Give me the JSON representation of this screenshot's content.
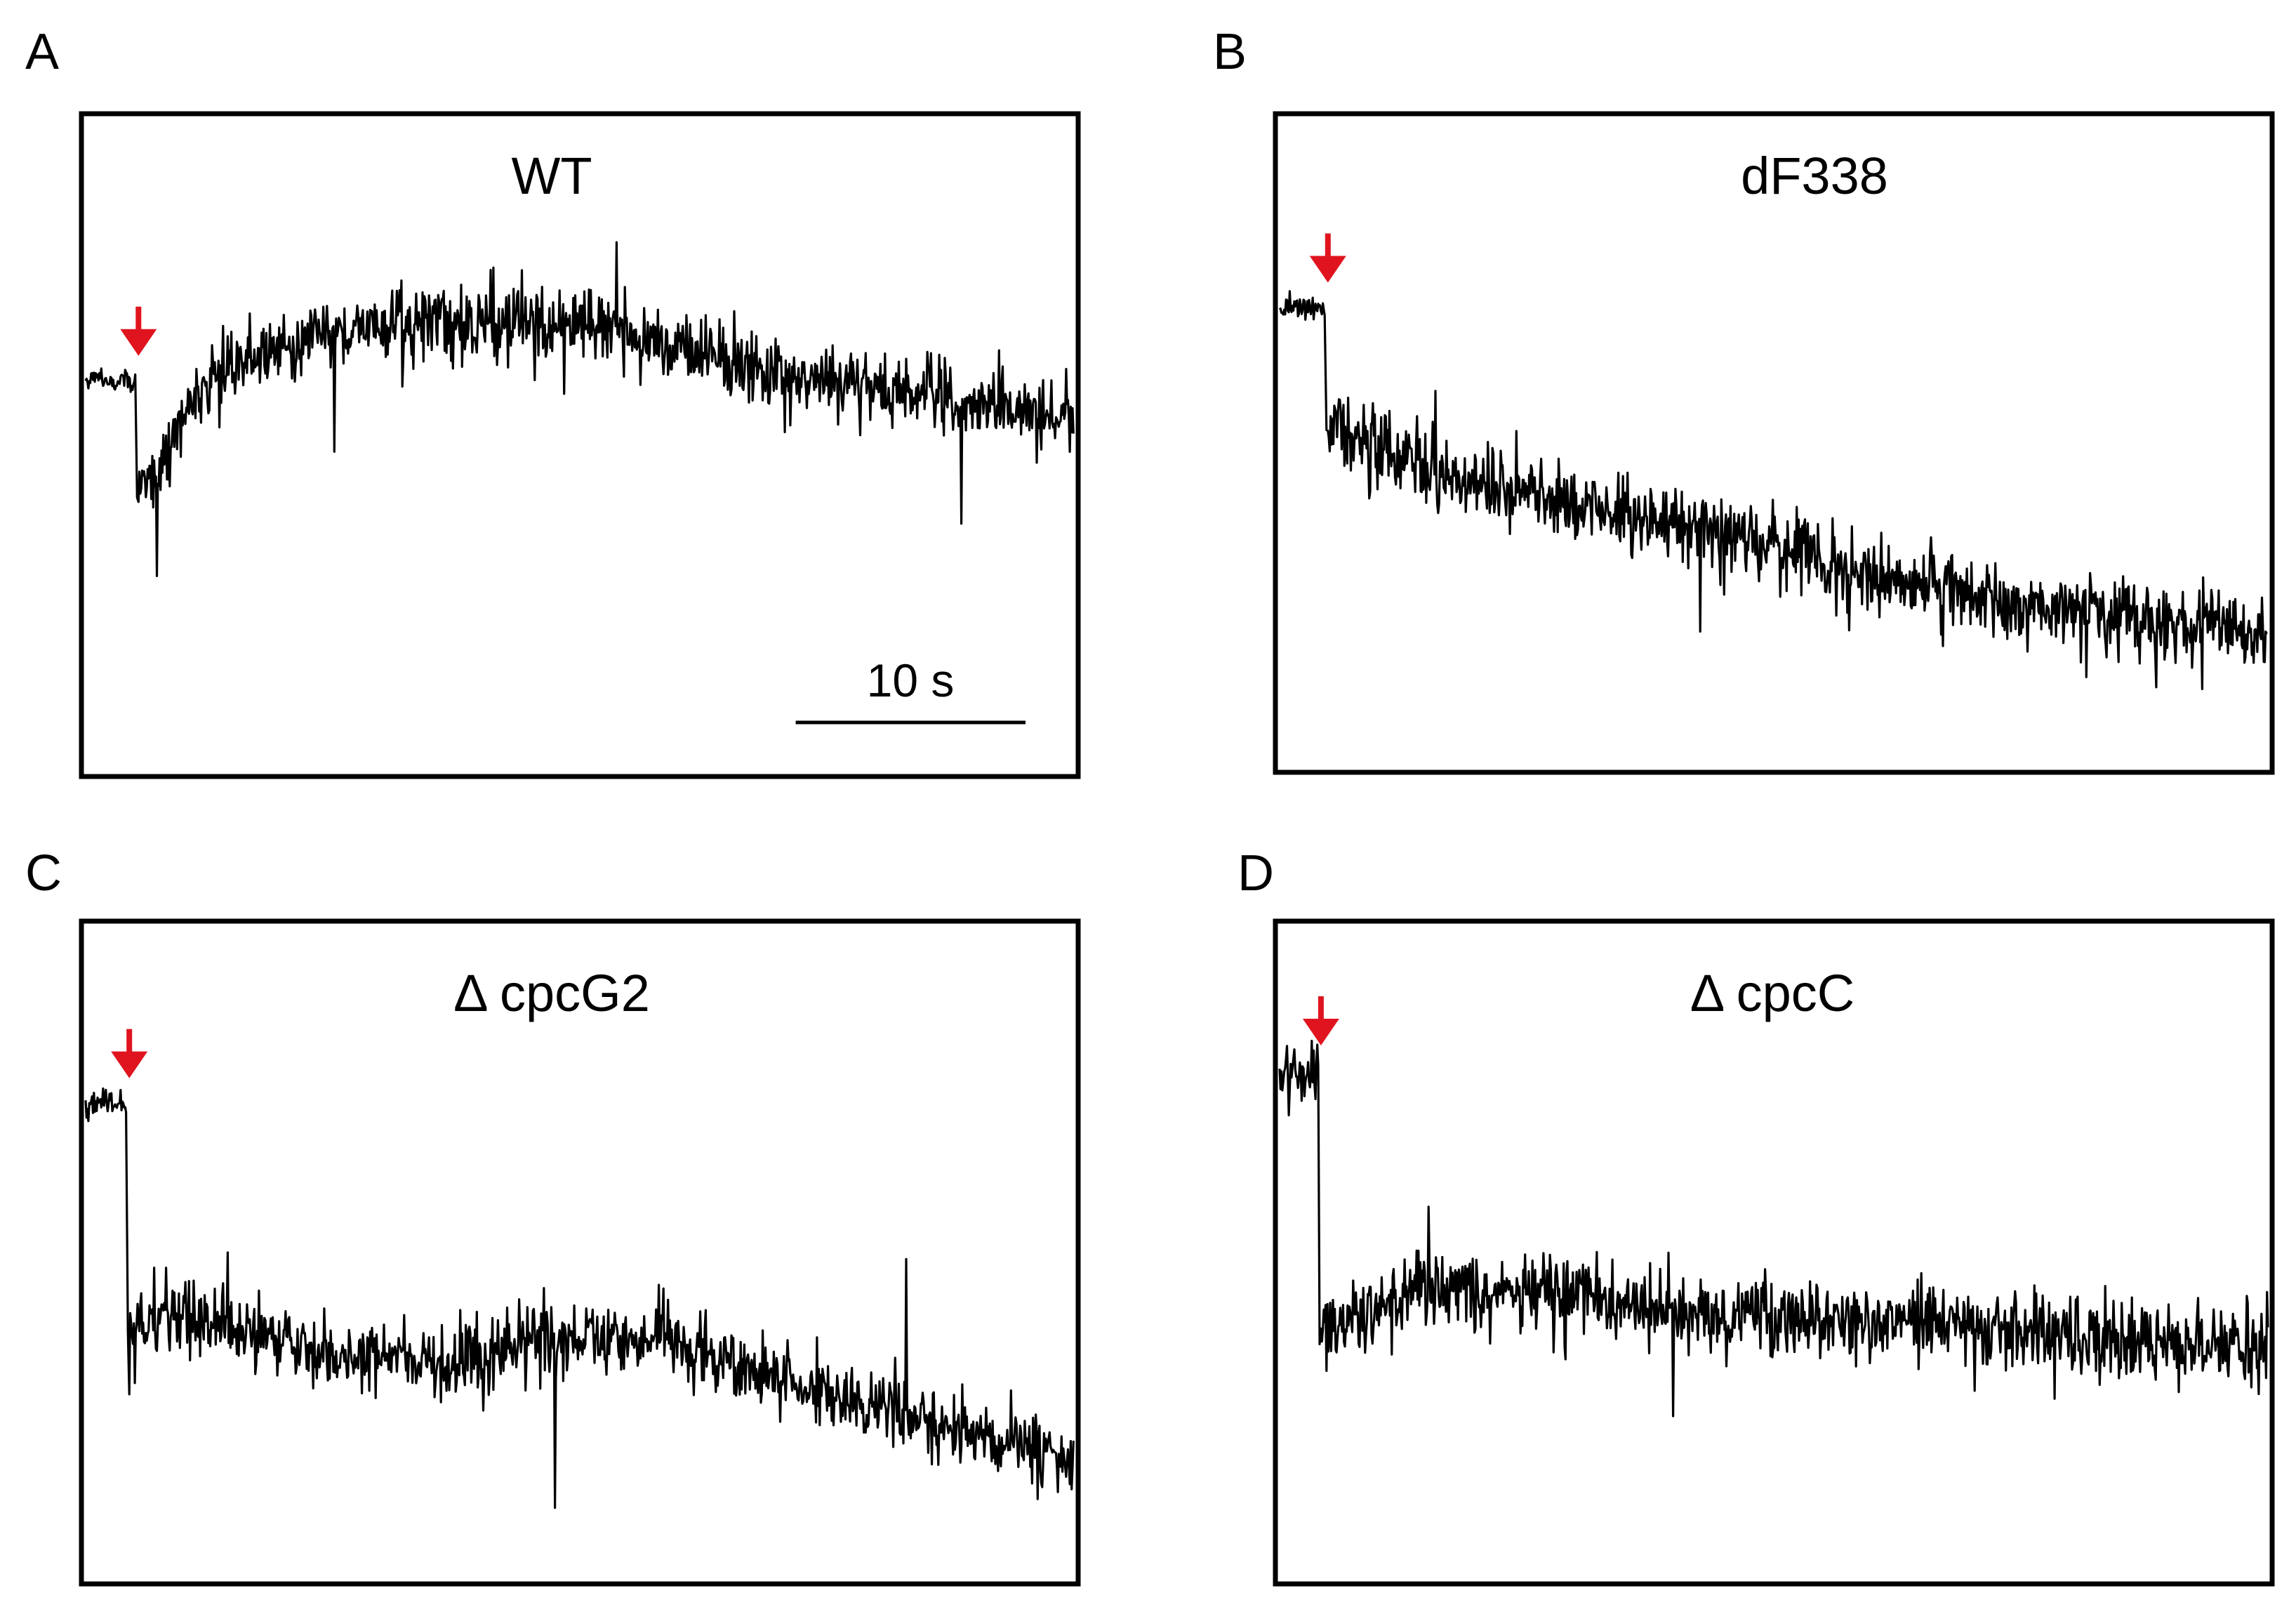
{
  "chart_data": [
    {
      "panel": "A",
      "title": "WT",
      "type": "line",
      "x_units": "s",
      "y_units": "",
      "x_range": [
        0,
        43
      ],
      "y_range": [
        0,
        1
      ],
      "arrow_x": 2.3,
      "arrow_color": "#e0141e",
      "trace_color": "#000000",
      "scale_bar": {
        "length": 10,
        "label": "10 s"
      },
      "trace": {
        "pre": {
          "x": [
            0,
            2.2
          ],
          "level": 0.6,
          "noise": 0.008
        },
        "drop_to": 0.42,
        "anchors": [
          [
            2.3,
            0.43
          ],
          [
            3,
            0.44
          ],
          [
            4,
            0.53
          ],
          [
            5.5,
            0.6
          ],
          [
            8,
            0.65
          ],
          [
            12,
            0.68
          ],
          [
            17,
            0.69
          ],
          [
            22,
            0.68
          ],
          [
            27,
            0.64
          ],
          [
            32,
            0.6
          ],
          [
            37,
            0.57
          ],
          [
            43,
            0.54
          ]
        ],
        "noise": 0.028,
        "spikes": [
          [
            3.1,
            0.3
          ],
          [
            10.8,
            0.49
          ],
          [
            23.1,
            0.81
          ],
          [
            38.1,
            0.38
          ]
        ]
      }
    },
    {
      "panel": "B",
      "title": "dF338",
      "type": "line",
      "x_units": "s",
      "y_units": "",
      "x_range": [
        0,
        43
      ],
      "y_range": [
        0,
        1
      ],
      "arrow_x": 2.1,
      "arrow_color": "#e0141e",
      "trace_color": "#000000",
      "trace": {
        "pre": {
          "x": [
            0,
            2.0
          ],
          "level": 0.71,
          "noise": 0.01
        },
        "drop_to": 0.52,
        "anchors": [
          [
            2.1,
            0.54
          ],
          [
            4,
            0.49
          ],
          [
            7,
            0.45
          ],
          [
            11,
            0.42
          ],
          [
            15,
            0.39
          ],
          [
            20,
            0.36
          ],
          [
            24,
            0.31
          ],
          [
            28,
            0.28
          ],
          [
            32,
            0.25
          ],
          [
            36,
            0.24
          ],
          [
            40,
            0.22
          ],
          [
            43,
            0.2
          ]
        ],
        "noise": 0.03,
        "spikes": [
          [
            35.1,
            0.14
          ],
          [
            18.3,
            0.21
          ],
          [
            6.8,
            0.58
          ]
        ]
      }
    },
    {
      "panel": "C",
      "title": "Δ cpcG2",
      "type": "line",
      "x_units": "s",
      "y_units": "",
      "x_range": [
        0,
        43
      ],
      "y_range": [
        0,
        1
      ],
      "arrow_x": 1.9,
      "arrow_color": "#e0141e",
      "trace_color": "#000000",
      "trace": {
        "pre": {
          "x": [
            0,
            1.8
          ],
          "level": 0.73,
          "noise": 0.01
        },
        "drop_to": 0.38,
        "anchors": [
          [
            1.9,
            0.38
          ],
          [
            4,
            0.4
          ],
          [
            8,
            0.37
          ],
          [
            12,
            0.34
          ],
          [
            16,
            0.33
          ],
          [
            20,
            0.37
          ],
          [
            24,
            0.37
          ],
          [
            28,
            0.34
          ],
          [
            32,
            0.29
          ],
          [
            36,
            0.25
          ],
          [
            40,
            0.21
          ],
          [
            43,
            0.17
          ]
        ],
        "noise": 0.028,
        "spikes": [
          [
            20.4,
            0.11
          ],
          [
            35.7,
            0.49
          ],
          [
            6.2,
            0.5
          ]
        ]
      }
    },
    {
      "panel": "D",
      "title": "Δ cpcC",
      "type": "line",
      "x_units": "s",
      "y_units": "",
      "x_range": [
        0,
        43
      ],
      "y_range": [
        0,
        1
      ],
      "arrow_x": 1.8,
      "arrow_color": "#e0141e",
      "trace_color": "#000000",
      "trace": {
        "pre": {
          "x": [
            0,
            1.7
          ],
          "level": 0.78,
          "noise": 0.025
        },
        "drop_to": 0.36,
        "anchors": [
          [
            1.8,
            0.38
          ],
          [
            3,
            0.4
          ],
          [
            6,
            0.44
          ],
          [
            10,
            0.44
          ],
          [
            15,
            0.42
          ],
          [
            20,
            0.4
          ],
          [
            25,
            0.4
          ],
          [
            30,
            0.39
          ],
          [
            35,
            0.37
          ],
          [
            40,
            0.36
          ],
          [
            43,
            0.35
          ]
        ],
        "noise": 0.03,
        "spikes": [
          [
            17.1,
            0.25
          ],
          [
            6.5,
            0.57
          ]
        ]
      }
    }
  ]
}
